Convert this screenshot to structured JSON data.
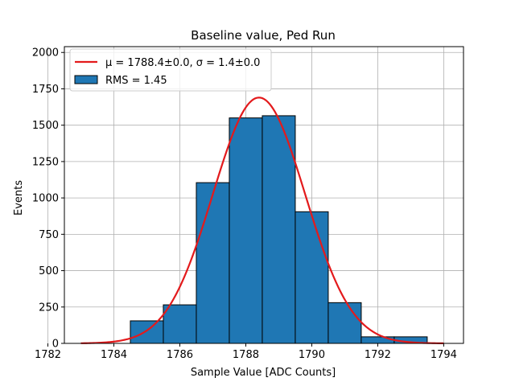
{
  "chart_data": {
    "type": "bar",
    "title": "Baseline value, Ped Run",
    "xlabel": "Sample Value [ADC Counts]",
    "ylabel": "Events",
    "xlim": [
      1782.5,
      1794.6
    ],
    "ylim": [
      0,
      2040
    ],
    "grid": true,
    "legend_position": "top-left",
    "xticks": [
      1782,
      1784,
      1786,
      1788,
      1790,
      1792,
      1794
    ],
    "yticks": [
      0,
      250,
      500,
      750,
      1000,
      1250,
      1500,
      1750,
      2000
    ],
    "histogram": {
      "name": "RMS = 1.45",
      "color": "#1f77b4",
      "edgecolor": "#000000",
      "bins": [
        {
          "x0": 1784.5,
          "x1": 1785.5,
          "count": 155
        },
        {
          "x0": 1785.5,
          "x1": 1786.5,
          "count": 265
        },
        {
          "x0": 1786.5,
          "x1": 1787.5,
          "count": 1105
        },
        {
          "x0": 1787.5,
          "x1": 1788.5,
          "count": 1550
        },
        {
          "x0": 1788.5,
          "x1": 1789.5,
          "count": 1565
        },
        {
          "x0": 1789.5,
          "x1": 1790.5,
          "count": 905
        },
        {
          "x0": 1790.5,
          "x1": 1791.5,
          "count": 280
        },
        {
          "x0": 1791.5,
          "x1": 1792.5,
          "count": 45
        },
        {
          "x0": 1792.5,
          "x1": 1793.5,
          "count": 45
        }
      ]
    },
    "fit": {
      "type": "gaussian",
      "label_prefix": "μ = 1788.4±0.0, σ = 1.4±0.0",
      "mu": 1788.4,
      "sigma": 1.4,
      "amplitude": 1690,
      "x_range": [
        1783,
        1794
      ],
      "color": "#e31a1c"
    }
  }
}
